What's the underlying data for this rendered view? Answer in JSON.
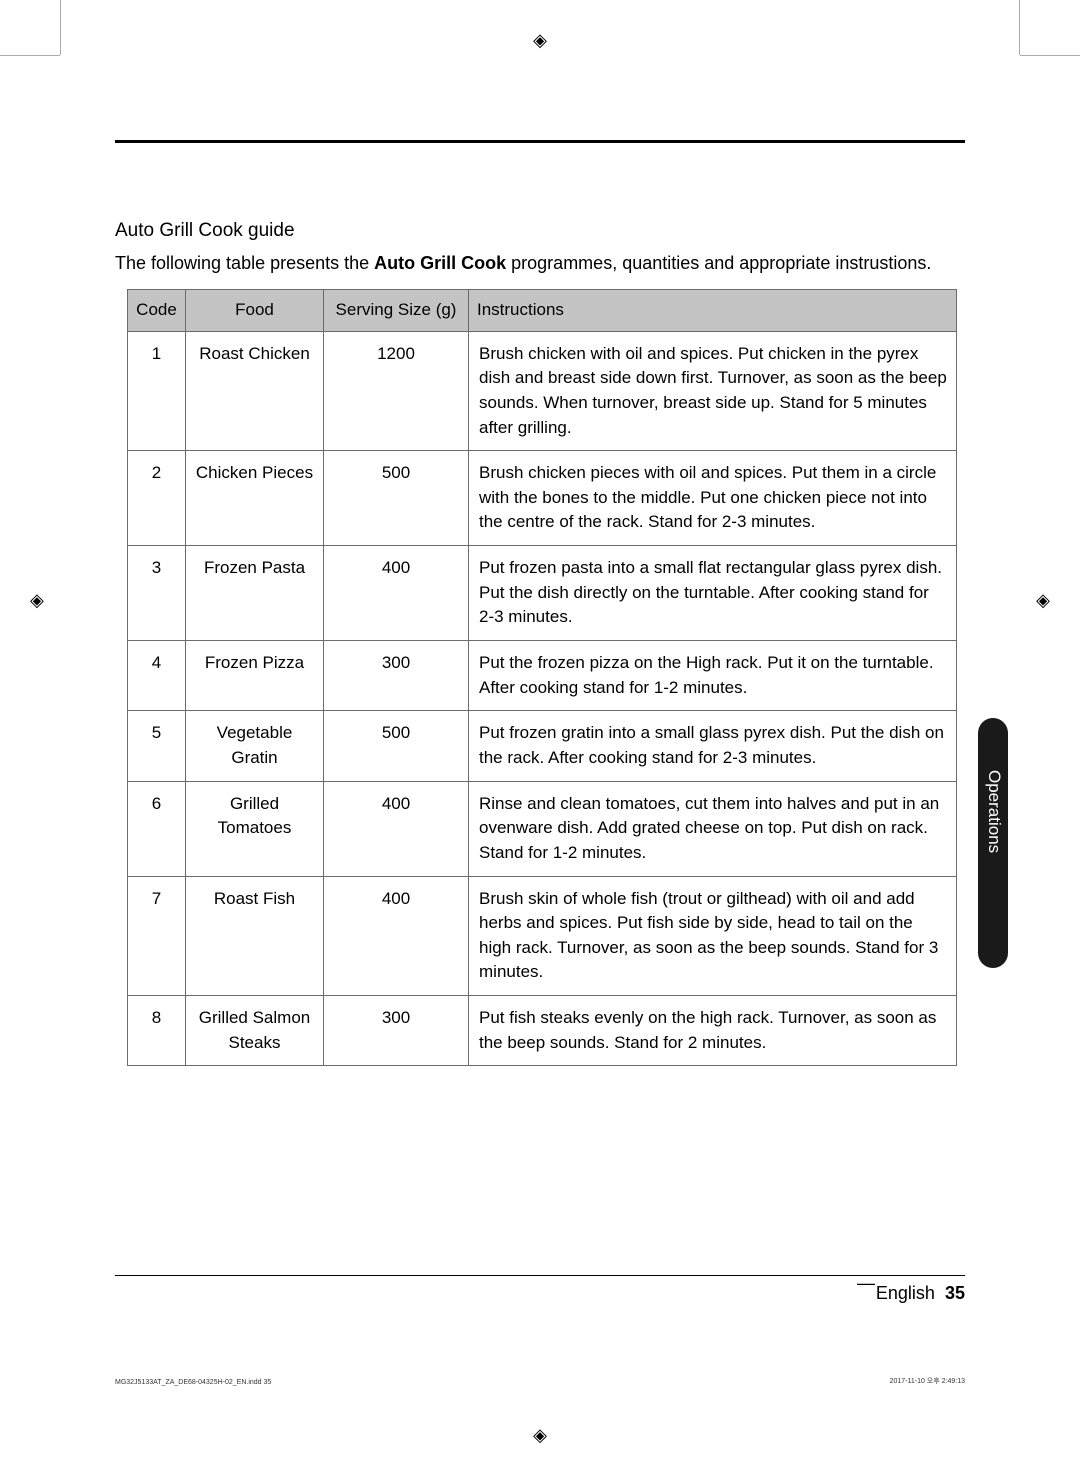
{
  "title": "Auto Grill Cook guide",
  "intro_pre": "The following table presents the ",
  "intro_bold": "Auto Grill Cook",
  "intro_post": " programmes, quantities and appropriate instrustions.",
  "headers": {
    "code": "Code",
    "food": "Food",
    "size": "Serving Size (g)",
    "instructions": "Instructions"
  },
  "rows": [
    {
      "code": "1",
      "food": "Roast Chicken",
      "size": "1200",
      "instructions": "Brush chicken with oil and spices. Put chicken in the pyrex dish and breast side down first. Turnover, as soon as the beep sounds. When turnover, breast side up. Stand for 5 minutes after grilling."
    },
    {
      "code": "2",
      "food": "Chicken Pieces",
      "size": "500",
      "instructions": "Brush chicken pieces with oil and spices. Put them in a circle with the bones to the middle. Put one chicken piece not into the centre of the rack. Stand for 2-3 minutes."
    },
    {
      "code": "3",
      "food": "Frozen Pasta",
      "size": "400",
      "instructions": "Put frozen pasta into a small flat rectangular glass pyrex dish. Put the dish directly on the turntable. After cooking stand for 2-3 minutes."
    },
    {
      "code": "4",
      "food": "Frozen Pizza",
      "size": "300",
      "instructions": "Put the frozen pizza on the High rack. Put it on the turntable. After cooking stand for 1-2 minutes."
    },
    {
      "code": "5",
      "food": "Vegetable Gratin",
      "size": "500",
      "instructions": "Put frozen gratin into a small glass pyrex dish. Put the dish on the rack. After cooking stand for 2-3 minutes."
    },
    {
      "code": "6",
      "food": "Grilled Tomatoes",
      "size": "400",
      "instructions": "Rinse and clean tomatoes, cut them into halves and put in an ovenware dish. Add grated cheese on top. Put dish on rack. Stand for 1-2 minutes."
    },
    {
      "code": "7",
      "food": "Roast Fish",
      "size": "400",
      "instructions": "Brush skin of whole fish (trout or gilthead) with oil and add herbs and spices. Put fish side by side, head to tail on the high rack. Turnover, as soon as the beep sounds. Stand for 3 minutes."
    },
    {
      "code": "8",
      "food": "Grilled Salmon Steaks",
      "size": "300",
      "instructions": "Put fish steaks evenly on the high rack. Turnover, as soon as the beep sounds. Stand for 2 minutes."
    }
  ],
  "side_tab": "Operations",
  "footer_lang": "English",
  "footer_page": "35",
  "print_left": "MG32J5133AT_ZA_DE68-04325H-02_EN.indd   35",
  "print_right": "2017-11-10   오후 2:49:13",
  "crop_glyph": "◈"
}
